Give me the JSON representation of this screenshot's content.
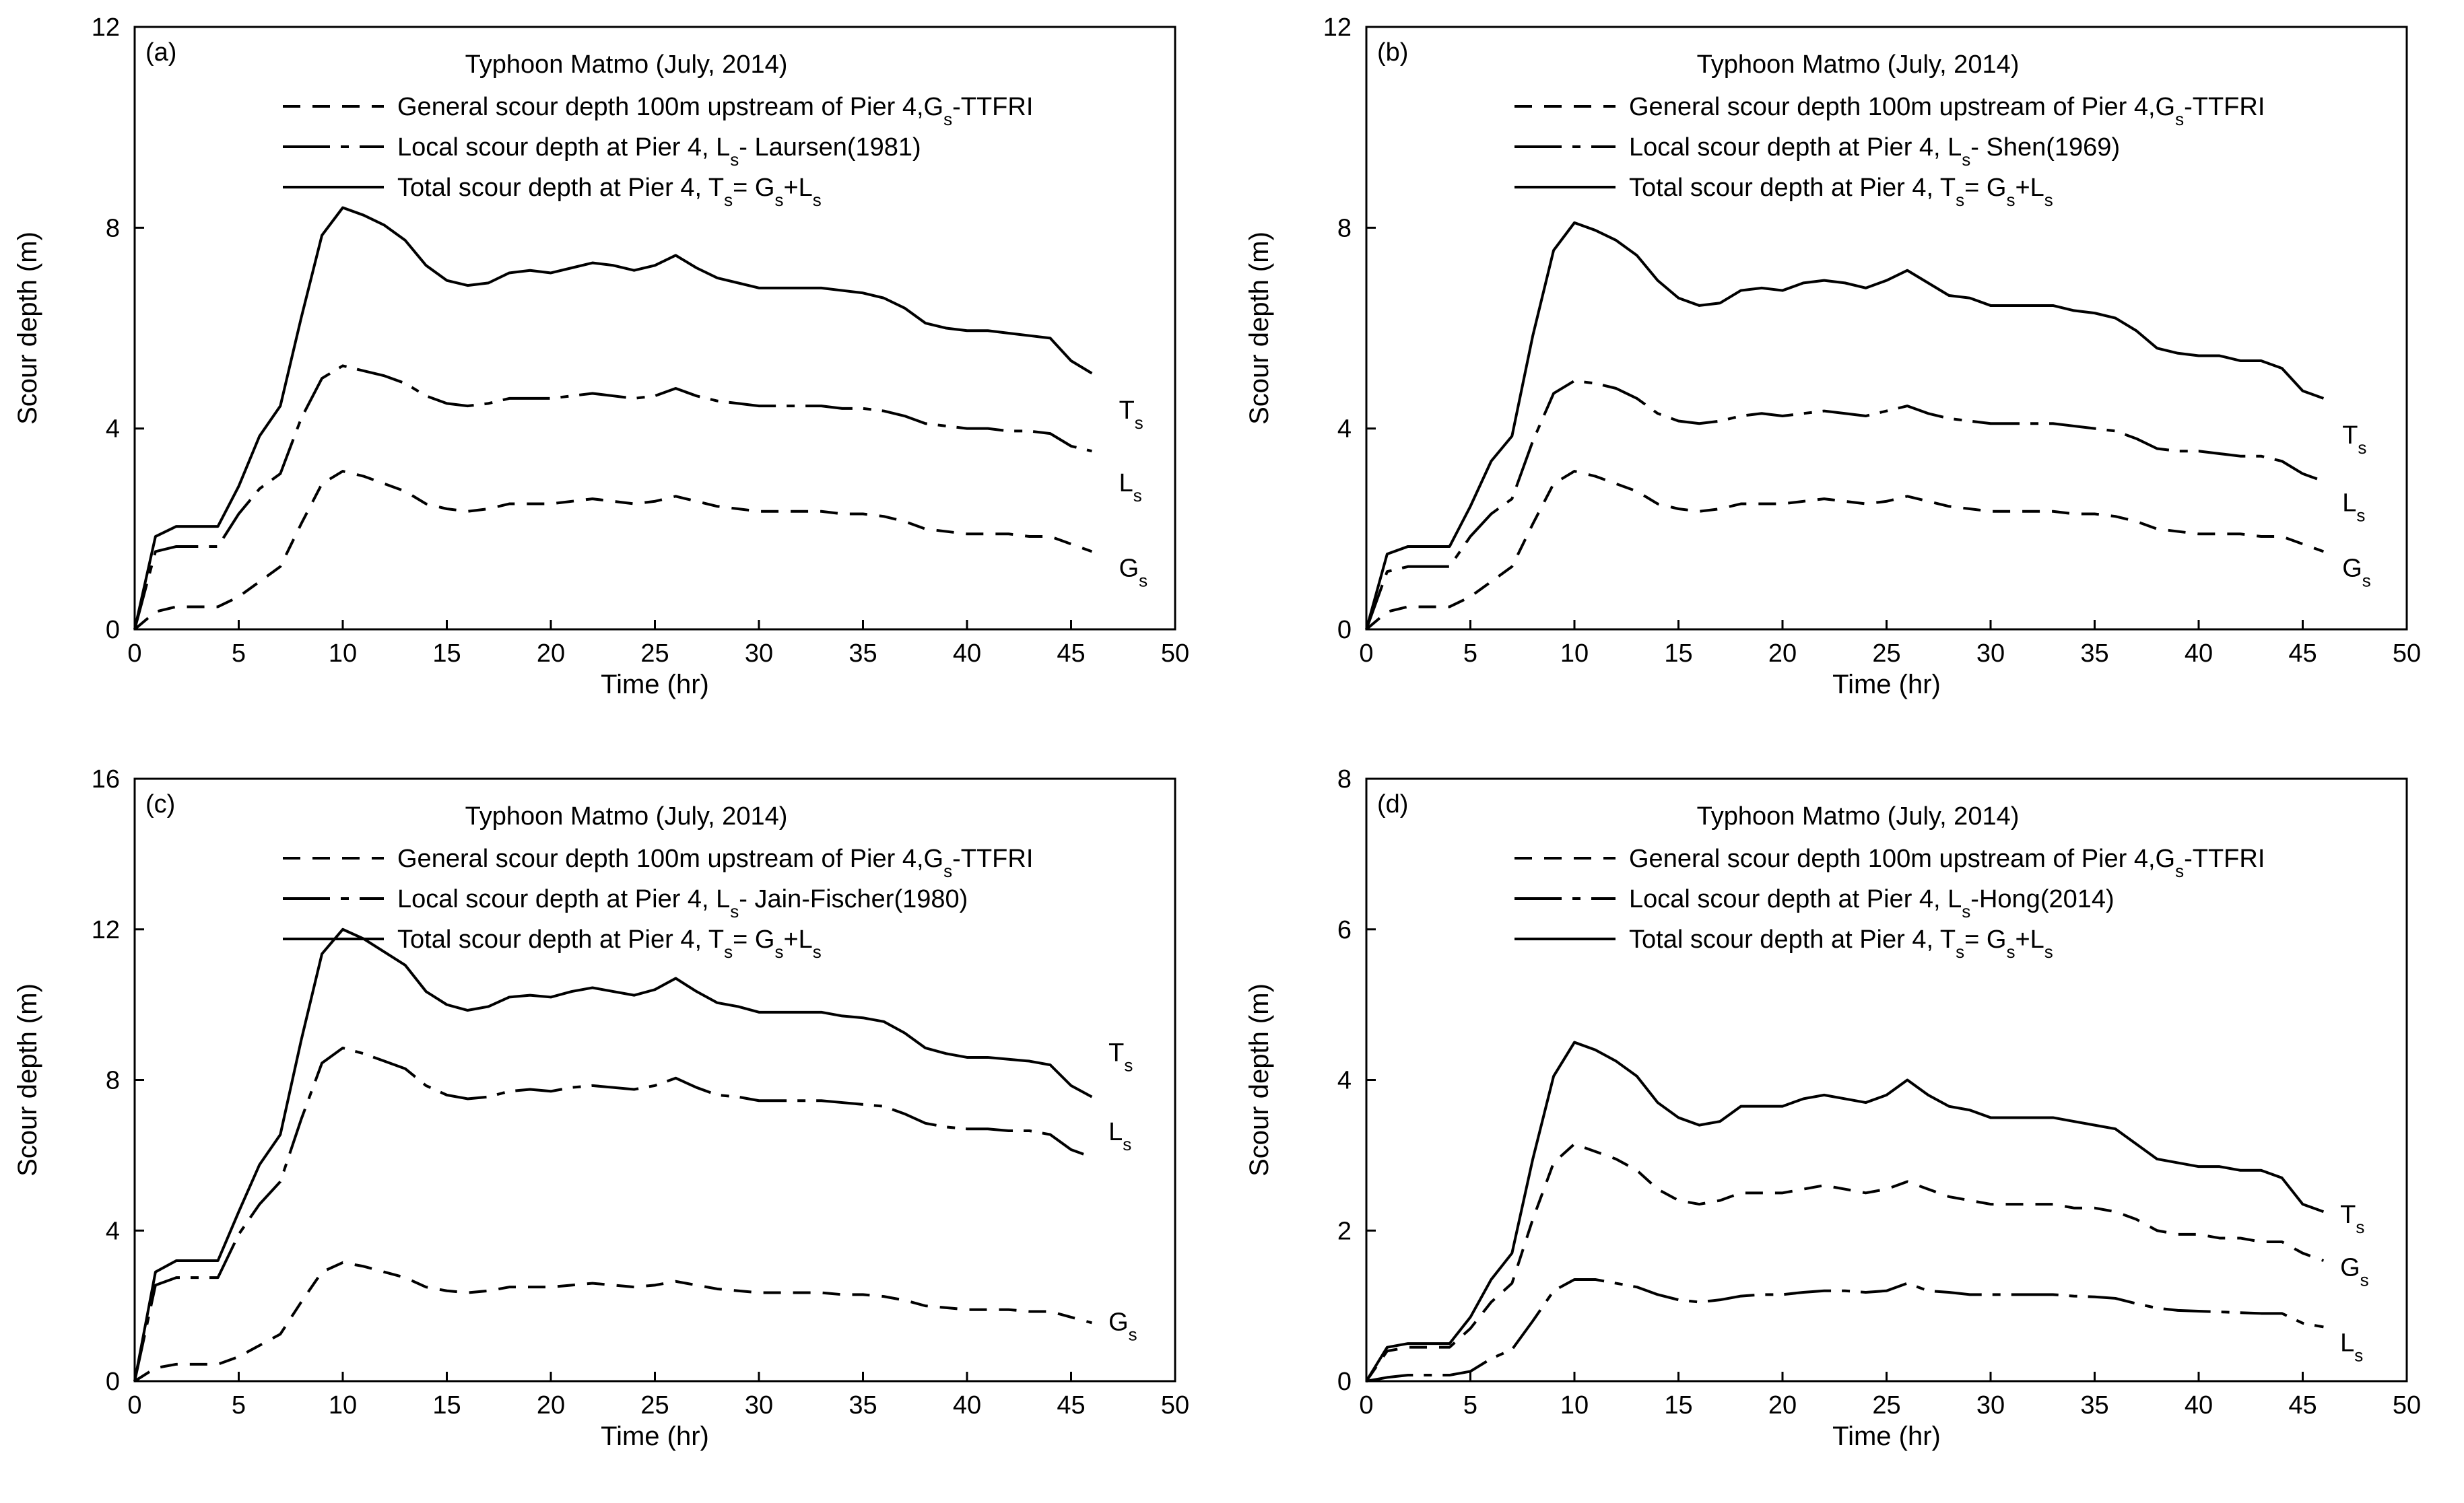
{
  "chart_data": [
    {
      "panel_label": "(a)",
      "type": "line",
      "title": "Typhoon Matmo (July, 2014)",
      "xlabel": "Time (hr)",
      "ylabel": "Scour depth (m)",
      "xlim": [
        0,
        50
      ],
      "ylim": [
        0,
        12
      ],
      "xticks": [
        0,
        5,
        10,
        15,
        20,
        25,
        30,
        35,
        40,
        45,
        50
      ],
      "yticks": [
        0,
        4,
        8,
        12
      ],
      "legend": [
        {
          "style": "dashed",
          "text": "General scour depth 100m upstream of Pier 4,G",
          "sub": "s",
          "post": "-TTFRI"
        },
        {
          "style": "dashdot",
          "text": "Local scour depth at Pier 4, L",
          "sub": "s",
          "post": "- Laursen(1981)"
        },
        {
          "style": "solid",
          "text": "Total scour depth at Pier 4, T",
          "sub": "s",
          "post": "= G",
          "sub2": "s",
          "post2": "+L",
          "sub3": "s"
        }
      ],
      "x": [
        0,
        1,
        2,
        3,
        4,
        5,
        6,
        7,
        8,
        9,
        10,
        11,
        12,
        13,
        14,
        15,
        16,
        17,
        18,
        19,
        20,
        21,
        22,
        23,
        24,
        25,
        26,
        27,
        28,
        29,
        30,
        31,
        32,
        33,
        34,
        35,
        36,
        37,
        38,
        39,
        40,
        41,
        42,
        43,
        44,
        45,
        46
      ],
      "series": [
        {
          "name": "G",
          "sub": "s",
          "style": "dashed",
          "label_xy": [
            47.3,
            1.05
          ],
          "values": [
            0,
            0.35,
            0.45,
            0.45,
            0.45,
            0.65,
            0.95,
            1.25,
            2.1,
            2.9,
            3.15,
            3.05,
            2.9,
            2.75,
            2.5,
            2.4,
            2.35,
            2.4,
            2.5,
            2.5,
            2.5,
            2.55,
            2.6,
            2.55,
            2.5,
            2.55,
            2.65,
            2.55,
            2.45,
            2.4,
            2.35,
            2.35,
            2.35,
            2.35,
            2.3,
            2.3,
            2.25,
            2.15,
            2.0,
            1.95,
            1.9,
            1.9,
            1.9,
            1.85,
            1.85,
            1.7,
            1.55
          ]
        },
        {
          "name": "L",
          "sub": "s",
          "style": "dashdot",
          "label_xy": [
            47.3,
            2.75
          ],
          "values": [
            0,
            1.55,
            1.65,
            1.65,
            1.65,
            2.3,
            2.8,
            3.1,
            4.2,
            5.0,
            5.25,
            5.15,
            5.05,
            4.9,
            4.65,
            4.5,
            4.45,
            4.5,
            4.6,
            4.6,
            4.6,
            4.65,
            4.7,
            4.65,
            4.6,
            4.65,
            4.8,
            4.65,
            4.55,
            4.5,
            4.45,
            4.45,
            4.45,
            4.45,
            4.4,
            4.4,
            4.35,
            4.25,
            4.1,
            4.05,
            4.0,
            4.0,
            3.95,
            3.95,
            3.9,
            3.65,
            3.55
          ]
        },
        {
          "name": "T",
          "sub": "s",
          "style": "solid",
          "label_xy": [
            47.3,
            4.2
          ],
          "values": [
            0,
            1.85,
            2.05,
            2.05,
            2.05,
            2.85,
            3.85,
            4.45,
            6.2,
            7.85,
            8.4,
            8.25,
            8.05,
            7.75,
            7.25,
            6.95,
            6.85,
            6.9,
            7.1,
            7.15,
            7.1,
            7.2,
            7.3,
            7.25,
            7.15,
            7.25,
            7.45,
            7.2,
            7.0,
            6.9,
            6.8,
            6.8,
            6.8,
            6.8,
            6.75,
            6.7,
            6.6,
            6.4,
            6.1,
            6.0,
            5.95,
            5.95,
            5.9,
            5.85,
            5.8,
            5.35,
            5.1
          ]
        }
      ]
    },
    {
      "panel_label": "(b)",
      "type": "line",
      "title": "Typhoon Matmo (July, 2014)",
      "xlabel": "Time (hr)",
      "ylabel": "Scour depth (m)",
      "xlim": [
        0,
        50
      ],
      "ylim": [
        0,
        12
      ],
      "xticks": [
        0,
        5,
        10,
        15,
        20,
        25,
        30,
        35,
        40,
        45,
        50
      ],
      "yticks": [
        0,
        4,
        8,
        12
      ],
      "legend": [
        {
          "style": "dashed",
          "text": "General scour depth 100m upstream of Pier 4,G",
          "sub": "s",
          "post": "-TTFRI"
        },
        {
          "style": "dashdot",
          "text": "Local scour depth at Pier 4, L",
          "sub": "s",
          "post": "- Shen(1969)"
        },
        {
          "style": "solid",
          "text": "Total scour depth at Pier 4, T",
          "sub": "s",
          "post": "= G",
          "sub2": "s",
          "post2": "+L",
          "sub3": "s"
        }
      ],
      "x": [
        0,
        1,
        2,
        3,
        4,
        5,
        6,
        7,
        8,
        9,
        10,
        11,
        12,
        13,
        14,
        15,
        16,
        17,
        18,
        19,
        20,
        21,
        22,
        23,
        24,
        25,
        26,
        27,
        28,
        29,
        30,
        31,
        32,
        33,
        34,
        35,
        36,
        37,
        38,
        39,
        40,
        41,
        42,
        43,
        44,
        45,
        46
      ],
      "series": [
        {
          "name": "G",
          "sub": "s",
          "style": "dashed",
          "label_xy": [
            46.9,
            1.05
          ],
          "values": [
            0,
            0.35,
            0.45,
            0.45,
            0.45,
            0.65,
            0.95,
            1.25,
            2.1,
            2.9,
            3.15,
            3.05,
            2.9,
            2.75,
            2.5,
            2.4,
            2.35,
            2.4,
            2.5,
            2.5,
            2.5,
            2.55,
            2.6,
            2.55,
            2.5,
            2.55,
            2.65,
            2.55,
            2.45,
            2.4,
            2.35,
            2.35,
            2.35,
            2.35,
            2.3,
            2.3,
            2.25,
            2.15,
            2.0,
            1.95,
            1.9,
            1.9,
            1.9,
            1.85,
            1.85,
            1.7,
            1.55
          ]
        },
        {
          "name": "L",
          "sub": "s",
          "style": "dashdot",
          "label_xy": [
            46.9,
            2.35
          ],
          "values": [
            0,
            1.15,
            1.25,
            1.25,
            1.25,
            1.85,
            2.3,
            2.6,
            3.75,
            4.7,
            4.95,
            4.9,
            4.8,
            4.6,
            4.3,
            4.15,
            4.1,
            4.15,
            4.25,
            4.3,
            4.25,
            4.3,
            4.35,
            4.3,
            4.25,
            4.35,
            4.45,
            4.3,
            4.2,
            4.15,
            4.1,
            4.1,
            4.1,
            4.1,
            4.05,
            4.0,
            3.95,
            3.8,
            3.6,
            3.55,
            3.55,
            3.5,
            3.45,
            3.45,
            3.35,
            3.1,
            2.95
          ]
        },
        {
          "name": "T",
          "sub": "s",
          "style": "solid",
          "label_xy": [
            46.9,
            3.7
          ],
          "values": [
            0,
            1.5,
            1.65,
            1.65,
            1.65,
            2.45,
            3.35,
            3.85,
            5.85,
            7.55,
            8.1,
            7.95,
            7.75,
            7.45,
            6.95,
            6.6,
            6.45,
            6.5,
            6.75,
            6.8,
            6.75,
            6.9,
            6.95,
            6.9,
            6.8,
            6.95,
            7.15,
            6.9,
            6.65,
            6.6,
            6.45,
            6.45,
            6.45,
            6.45,
            6.35,
            6.3,
            6.2,
            5.95,
            5.6,
            5.5,
            5.45,
            5.45,
            5.35,
            5.35,
            5.2,
            4.75,
            4.6
          ]
        }
      ]
    },
    {
      "panel_label": "(c)",
      "type": "line",
      "title": "Typhoon Matmo (July, 2014)",
      "xlabel": "Time (hr)",
      "ylabel": "Scour depth (m)",
      "xlim": [
        0,
        50
      ],
      "ylim": [
        0,
        16
      ],
      "xticks": [
        0,
        5,
        10,
        15,
        20,
        25,
        30,
        35,
        40,
        45,
        50
      ],
      "yticks": [
        0,
        4,
        8,
        12,
        16
      ],
      "legend": [
        {
          "style": "dashed",
          "text": "General scour depth 100m upstream of Pier 4,G",
          "sub": "s",
          "post": "-TTFRI"
        },
        {
          "style": "dashdot",
          "text": "Local scour depth at Pier 4, L",
          "sub": "s",
          "post": "- Jain-Fischer(1980)"
        },
        {
          "style": "solid",
          "text": "Total scour depth at Pier 4, T",
          "sub": "s",
          "post": "= G",
          "sub2": "s",
          "post2": "+L",
          "sub3": "s"
        }
      ],
      "x": [
        0,
        1,
        2,
        3,
        4,
        5,
        6,
        7,
        8,
        9,
        10,
        11,
        12,
        13,
        14,
        15,
        16,
        17,
        18,
        19,
        20,
        21,
        22,
        23,
        24,
        25,
        26,
        27,
        28,
        29,
        30,
        31,
        32,
        33,
        34,
        35,
        36,
        37,
        38,
        39,
        40,
        41,
        42,
        43,
        44,
        45,
        46
      ],
      "series": [
        {
          "name": "G",
          "sub": "s",
          "style": "dashed",
          "label_xy": [
            46.8,
            1.35
          ],
          "values": [
            0,
            0.35,
            0.45,
            0.45,
            0.45,
            0.65,
            0.95,
            1.25,
            2.1,
            2.9,
            3.15,
            3.05,
            2.9,
            2.75,
            2.5,
            2.4,
            2.35,
            2.4,
            2.5,
            2.5,
            2.5,
            2.55,
            2.6,
            2.55,
            2.5,
            2.55,
            2.65,
            2.55,
            2.45,
            2.4,
            2.35,
            2.35,
            2.35,
            2.35,
            2.3,
            2.3,
            2.25,
            2.15,
            2.0,
            1.95,
            1.9,
            1.9,
            1.9,
            1.85,
            1.85,
            1.7,
            1.55
          ]
        },
        {
          "name": "L",
          "sub": "s",
          "style": "dashdot",
          "label_xy": [
            46.8,
            6.4
          ],
          "values": [
            0,
            2.55,
            2.75,
            2.75,
            2.75,
            3.9,
            4.7,
            5.3,
            6.95,
            8.45,
            8.85,
            8.7,
            8.5,
            8.3,
            7.85,
            7.6,
            7.5,
            7.55,
            7.7,
            7.75,
            7.7,
            7.8,
            7.85,
            7.8,
            7.75,
            7.85,
            8.05,
            7.8,
            7.6,
            7.55,
            7.45,
            7.45,
            7.45,
            7.45,
            7.4,
            7.35,
            7.3,
            7.1,
            6.85,
            6.75,
            6.7,
            6.7,
            6.65,
            6.65,
            6.55,
            6.15,
            5.95
          ]
        },
        {
          "name": "T",
          "sub": "s",
          "style": "solid",
          "label_xy": [
            46.8,
            8.5
          ],
          "values": [
            0,
            2.9,
            3.2,
            3.2,
            3.2,
            4.5,
            5.75,
            6.55,
            9.05,
            11.35,
            12.0,
            11.75,
            11.4,
            11.05,
            10.35,
            10.0,
            9.85,
            9.95,
            10.2,
            10.25,
            10.2,
            10.35,
            10.45,
            10.35,
            10.25,
            10.4,
            10.7,
            10.35,
            10.05,
            9.95,
            9.8,
            9.8,
            9.8,
            9.8,
            9.7,
            9.65,
            9.55,
            9.25,
            8.85,
            8.7,
            8.6,
            8.6,
            8.55,
            8.5,
            8.4,
            7.85,
            7.55
          ]
        }
      ]
    },
    {
      "panel_label": "(d)",
      "type": "line",
      "title": "Typhoon Matmo (July, 2014)",
      "xlabel": "Time (hr)",
      "ylabel": "Scour depth (m)",
      "xlim": [
        0,
        50
      ],
      "ylim": [
        0,
        8
      ],
      "xticks": [
        0,
        5,
        10,
        15,
        20,
        25,
        30,
        35,
        40,
        45,
        50
      ],
      "yticks": [
        0,
        2,
        4,
        6,
        8
      ],
      "legend": [
        {
          "style": "dashed",
          "text": "General scour depth 100m upstream of Pier 4,G",
          "sub": "s",
          "post": "-TTFRI"
        },
        {
          "style": "dashdot",
          "text": "Local scour depth at Pier 4, L",
          "sub": "s",
          "post": "-Hong(2014)"
        },
        {
          "style": "solid",
          "text": "Total scour depth at Pier 4, T",
          "sub": "s",
          "post": "= G",
          "sub2": "s",
          "post2": "+L",
          "sub3": "s"
        }
      ],
      "x": [
        0,
        1,
        2,
        3,
        4,
        5,
        6,
        7,
        8,
        9,
        10,
        11,
        12,
        13,
        14,
        15,
        16,
        17,
        18,
        19,
        20,
        21,
        22,
        23,
        24,
        25,
        26,
        27,
        28,
        29,
        30,
        31,
        32,
        33,
        34,
        35,
        36,
        37,
        38,
        39,
        40,
        41,
        42,
        43,
        44,
        45,
        46
      ],
      "series": [
        {
          "name": "G",
          "sub": "s",
          "style": "dashed",
          "label_xy": [
            46.8,
            1.4
          ],
          "values": [
            0,
            0.4,
            0.45,
            0.45,
            0.45,
            0.7,
            1.05,
            1.3,
            2.15,
            2.9,
            3.15,
            3.05,
            2.95,
            2.8,
            2.55,
            2.4,
            2.35,
            2.4,
            2.5,
            2.5,
            2.5,
            2.55,
            2.6,
            2.55,
            2.5,
            2.55,
            2.65,
            2.55,
            2.45,
            2.4,
            2.35,
            2.35,
            2.35,
            2.35,
            2.3,
            2.3,
            2.25,
            2.15,
            2.0,
            1.95,
            1.95,
            1.9,
            1.9,
            1.85,
            1.85,
            1.7,
            1.6
          ]
        },
        {
          "name": "L",
          "sub": "s",
          "style": "dashdot",
          "label_xy": [
            46.8,
            0.4
          ],
          "values": [
            0,
            0.05,
            0.08,
            0.08,
            0.08,
            0.13,
            0.3,
            0.42,
            0.8,
            1.2,
            1.35,
            1.35,
            1.3,
            1.25,
            1.15,
            1.08,
            1.05,
            1.08,
            1.13,
            1.15,
            1.15,
            1.18,
            1.2,
            1.2,
            1.18,
            1.2,
            1.3,
            1.2,
            1.18,
            1.15,
            1.15,
            1.15,
            1.15,
            1.15,
            1.13,
            1.12,
            1.1,
            1.03,
            0.97,
            0.94,
            0.93,
            0.92,
            0.91,
            0.9,
            0.9,
            0.77,
            0.72
          ]
        },
        {
          "name": "T",
          "sub": "s",
          "style": "solid",
          "label_xy": [
            46.8,
            2.1
          ],
          "values": [
            0,
            0.45,
            0.5,
            0.5,
            0.5,
            0.85,
            1.35,
            1.7,
            2.95,
            4.05,
            4.5,
            4.4,
            4.25,
            4.05,
            3.7,
            3.5,
            3.4,
            3.45,
            3.65,
            3.65,
            3.65,
            3.75,
            3.8,
            3.75,
            3.7,
            3.8,
            4.0,
            3.8,
            3.65,
            3.6,
            3.5,
            3.5,
            3.5,
            3.5,
            3.45,
            3.4,
            3.35,
            3.15,
            2.95,
            2.9,
            2.85,
            2.85,
            2.8,
            2.8,
            2.7,
            2.35,
            2.25
          ]
        }
      ]
    }
  ]
}
